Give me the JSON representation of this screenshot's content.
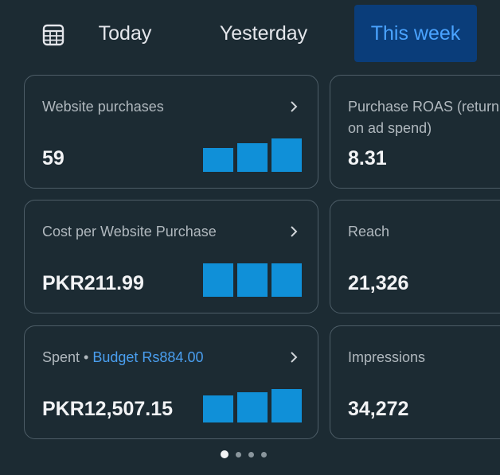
{
  "tabs": {
    "calendar_icon": "calendar-icon",
    "items": [
      "Today",
      "Yesterday",
      "This week"
    ],
    "selected": "This week"
  },
  "cards": {
    "website_purchases": {
      "title": "Website purchases",
      "value": "59",
      "bar_levels": [
        0.72,
        0.86,
        1.0
      ]
    },
    "purchase_roas": {
      "title": "Purchase ROAS (return on ad spend)",
      "value": "8.31"
    },
    "cost_per_purchase": {
      "title": "Cost per Website Purchase",
      "value": "PKR211.99",
      "bar_levels": [
        1.0,
        1.0,
        1.0
      ]
    },
    "reach": {
      "title": "Reach",
      "value": "21,326"
    },
    "spent": {
      "title": "Spent",
      "separator": " • ",
      "budget_label": "Budget Rs884.00",
      "value": "PKR12,507.15",
      "bar_levels": [
        0.8,
        0.9,
        1.0
      ]
    },
    "impressions": {
      "title": "Impressions",
      "value": "34,272"
    }
  },
  "pager": {
    "total": 4,
    "active_index": 0
  },
  "colors": {
    "background": "#1c2b33",
    "card_border": "#4d5d67",
    "accent": "#4aa3ff",
    "selected_tab_bg": "#0a3d7a",
    "bar": "#1090d8",
    "budget_link": "#4a9ff0"
  }
}
